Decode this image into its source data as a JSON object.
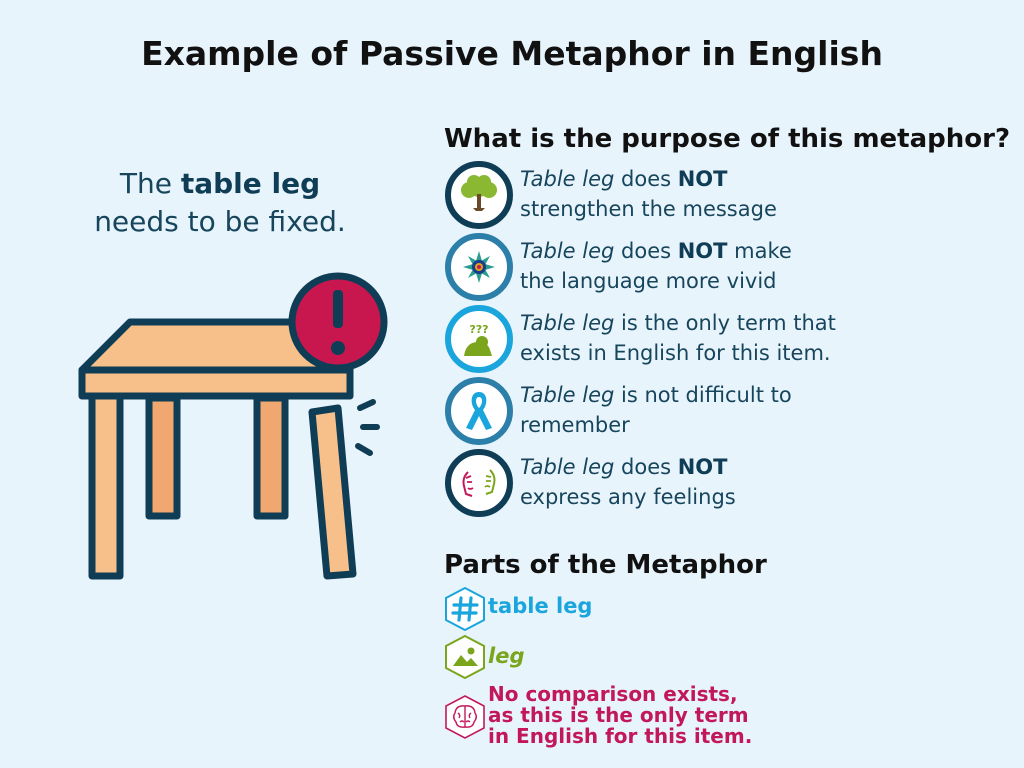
{
  "title": "Example of Passive Metaphor in English",
  "sentence": {
    "prefix": "The ",
    "highlight": "table leg",
    "suffix": "needs to be fixed."
  },
  "purpose": {
    "heading": "What is the purpose of this metaphor?",
    "items": [
      {
        "icon": "tree-icon",
        "term": "Table leg",
        "text_before": " does ",
        "emphasis": "NOT",
        "text_after": "",
        "line2": "strengthen the message"
      },
      {
        "icon": "mandala-icon",
        "term": "Table leg",
        "text_before": " does ",
        "emphasis": "NOT",
        "text_after": " make",
        "line2": "the language more vivid"
      },
      {
        "icon": "thinking-person-icon",
        "term": "Table leg",
        "text_before": " is the only term that",
        "emphasis": "",
        "text_after": "",
        "line2": "exists in English for this item."
      },
      {
        "icon": "ribbon-icon",
        "term": "Table leg",
        "text_before": " is not difficult to",
        "emphasis": "",
        "text_after": "",
        "line2": "remember"
      },
      {
        "icon": "faces-icon",
        "term": "Table leg",
        "text_before": " does ",
        "emphasis": "NOT",
        "text_after": "",
        "line2": "express any feelings"
      }
    ],
    "glyph": "???"
  },
  "parts": {
    "heading": "Parts of the Metaphor",
    "tenor": "table leg",
    "vehicle": "leg",
    "ground_lines": [
      "No comparison exists,",
      "as this is the only term",
      "in English for this item."
    ]
  },
  "colors": {
    "navy": "#0f3d56",
    "tenor": "#1aa5dc",
    "vehicle": "#7aa51c",
    "ground": "#c2185b",
    "table_top": "#f7bf8a",
    "table_leg_back": "#f0a870",
    "alert": "#c8174f"
  }
}
